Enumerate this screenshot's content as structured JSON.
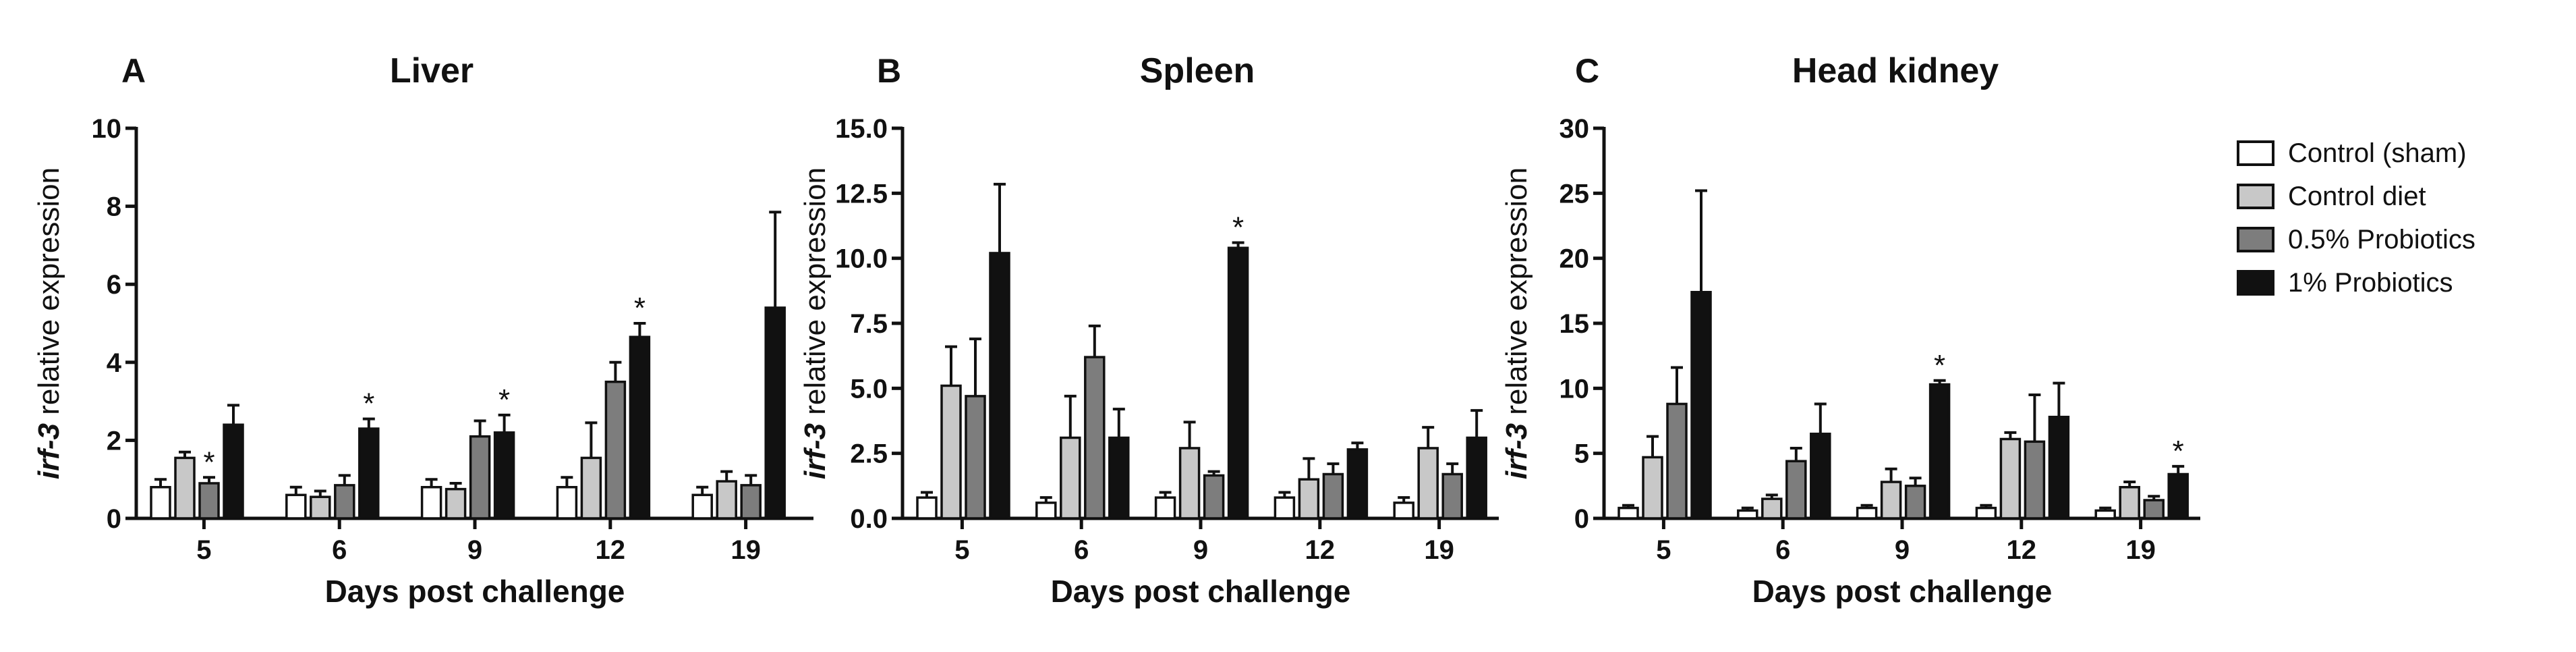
{
  "legend": {
    "items": [
      {
        "label": "Control (sham)",
        "color": "#ffffff"
      },
      {
        "label": "Control diet",
        "color": "#c8c8c8"
      },
      {
        "label": "0.5% Probiotics",
        "color": "#7d7d7d"
      },
      {
        "label": "1% Probiotics",
        "color": "#111111"
      }
    ]
  },
  "chart_data": [
    {
      "type": "bar",
      "panel": "A",
      "title": "Liver",
      "xlabel": "Days post challenge",
      "ylabel_gene": "irf-3",
      "ylabel_rest": " relative expression",
      "categories": [
        "5",
        "6",
        "9",
        "12",
        "19"
      ],
      "ylim": [
        0,
        10
      ],
      "yticks": [
        0,
        2,
        4,
        6,
        8,
        10
      ],
      "ytick_labels": [
        "0",
        "2",
        "4",
        "6",
        "8",
        "10"
      ],
      "significance_mark": "*",
      "series": [
        {
          "name": "Control (sham)",
          "values": [
            0.8,
            0.6,
            0.8,
            0.8,
            0.6
          ],
          "errors": [
            0.2,
            0.2,
            0.2,
            0.25,
            0.2
          ],
          "significant": [
            false,
            false,
            false,
            false,
            false
          ]
        },
        {
          "name": "Control diet",
          "values": [
            1.55,
            0.55,
            0.75,
            1.55,
            0.95
          ],
          "errors": [
            0.15,
            0.15,
            0.15,
            0.9,
            0.25
          ],
          "significant": [
            false,
            false,
            false,
            false,
            false
          ]
        },
        {
          "name": "0.5% Probiotics",
          "values": [
            0.9,
            0.85,
            2.1,
            3.5,
            0.85
          ],
          "errors": [
            0.15,
            0.25,
            0.4,
            0.5,
            0.25
          ],
          "significant": [
            true,
            false,
            false,
            false,
            false
          ]
        },
        {
          "name": "1% Probiotics",
          "values": [
            2.4,
            2.3,
            2.2,
            4.65,
            5.4
          ],
          "errors": [
            0.5,
            0.25,
            0.45,
            0.35,
            2.45
          ],
          "significant": [
            false,
            true,
            true,
            true,
            false
          ]
        }
      ]
    },
    {
      "type": "bar",
      "panel": "B",
      "title": "Spleen",
      "xlabel": "Days post challenge",
      "ylabel_gene": "irf-3",
      "ylabel_rest": " relative expression",
      "categories": [
        "5",
        "6",
        "9",
        "12",
        "19"
      ],
      "ylim": [
        0,
        15
      ],
      "yticks": [
        0,
        2.5,
        5,
        7.5,
        10,
        12.5,
        15
      ],
      "ytick_labels": [
        "0.0",
        "2.5",
        "5.0",
        "7.5",
        "10.0",
        "12.5",
        "15.0"
      ],
      "significance_mark": "*",
      "series": [
        {
          "name": "Control (sham)",
          "values": [
            0.8,
            0.6,
            0.8,
            0.8,
            0.6
          ],
          "errors": [
            0.2,
            0.2,
            0.2,
            0.2,
            0.2
          ],
          "significant": [
            false,
            false,
            false,
            false,
            false
          ]
        },
        {
          "name": "Control diet",
          "values": [
            5.1,
            3.1,
            2.7,
            1.5,
            2.7
          ],
          "errors": [
            1.5,
            1.6,
            1.0,
            0.8,
            0.8
          ],
          "significant": [
            false,
            false,
            false,
            false,
            false
          ]
        },
        {
          "name": "0.5% Probiotics",
          "values": [
            4.7,
            6.2,
            1.65,
            1.7,
            1.7
          ],
          "errors": [
            2.2,
            1.2,
            0.15,
            0.4,
            0.4
          ],
          "significant": [
            false,
            false,
            false,
            false,
            false
          ]
        },
        {
          "name": "1% Probiotics",
          "values": [
            10.2,
            3.1,
            10.4,
            2.65,
            3.1
          ],
          "errors": [
            2.65,
            1.1,
            0.2,
            0.25,
            1.05
          ],
          "significant": [
            false,
            false,
            true,
            false,
            false
          ]
        }
      ]
    },
    {
      "type": "bar",
      "panel": "C",
      "title": "Head kidney",
      "xlabel": "Days post challenge",
      "ylabel_gene": "irf-3",
      "ylabel_rest": " relative expression",
      "categories": [
        "5",
        "6",
        "9",
        "12",
        "19"
      ],
      "ylim": [
        0,
        30
      ],
      "yticks": [
        0,
        5,
        10,
        15,
        20,
        25,
        30
      ],
      "ytick_labels": [
        "0",
        "5",
        "10",
        "15",
        "20",
        "25",
        "30"
      ],
      "significance_mark": "*",
      "series": [
        {
          "name": "Control (sham)",
          "values": [
            0.8,
            0.6,
            0.8,
            0.8,
            0.6
          ],
          "errors": [
            0.2,
            0.2,
            0.2,
            0.2,
            0.2
          ],
          "significant": [
            false,
            false,
            false,
            false,
            false
          ]
        },
        {
          "name": "Control diet",
          "values": [
            4.7,
            1.5,
            2.8,
            6.1,
            2.4
          ],
          "errors": [
            1.6,
            0.3,
            1.0,
            0.5,
            0.4
          ],
          "significant": [
            false,
            false,
            false,
            false,
            false
          ]
        },
        {
          "name": "0.5% Probiotics",
          "values": [
            8.8,
            4.4,
            2.5,
            5.9,
            1.4
          ],
          "errors": [
            2.8,
            1.0,
            0.6,
            3.6,
            0.3
          ],
          "significant": [
            false,
            false,
            false,
            false,
            false
          ]
        },
        {
          "name": "1% Probiotics",
          "values": [
            17.4,
            6.5,
            10.3,
            7.8,
            3.4
          ],
          "errors": [
            7.8,
            2.3,
            0.3,
            2.6,
            0.6
          ],
          "significant": [
            false,
            false,
            true,
            false,
            true
          ]
        }
      ]
    }
  ]
}
